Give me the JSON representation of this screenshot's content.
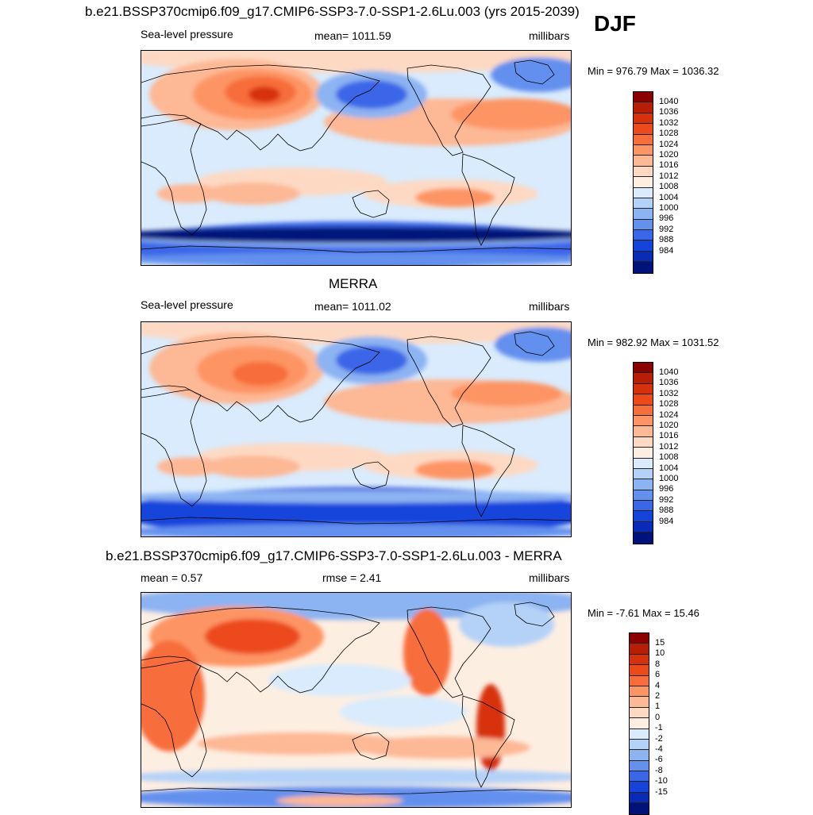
{
  "season": "DJF",
  "panels": [
    {
      "title": "b.e21.BSSP370cmip6.f09_g17.CMIP6-SSP3-7.0-SSP1-2.6Lu.003 (yrs 2015-2039)",
      "left_label": "Sea-level pressure",
      "center_label": "mean= 1011.59",
      "right_label": "millibars",
      "minmax": "Min = 976.79 Max = 1036.32"
    },
    {
      "title": "MERRA",
      "left_label": "Sea-level pressure",
      "center_label": "mean= 1011.02",
      "right_label": "millibars",
      "minmax": "Min = 982.92 Max = 1031.52"
    },
    {
      "title": "b.e21.BSSP370cmip6.f09_g17.CMIP6-SSP3-7.0-SSP1-2.6Lu.003 - MERRA",
      "left_label": "mean =   0.57",
      "center_label": "rmse =   2.41",
      "right_label": "millibars",
      "minmax": "Min =  -7.61 Max =  15.46"
    }
  ],
  "chart_data": [
    {
      "type": "heatmap",
      "title": "b.e21.BSSP370cmip6.f09_g17.CMIP6-SSP3-7.0-SSP1-2.6Lu.003 (yrs 2015-2039)",
      "variable": "Sea-level pressure",
      "units": "millibars",
      "mean": 1011.59,
      "min": 976.79,
      "max": 1036.32,
      "colorbar_levels": [
        "1040",
        "1036",
        "1032",
        "1028",
        "1024",
        "1020",
        "1016",
        "1012",
        "1008",
        "1004",
        "1000",
        "996",
        "992",
        "988",
        "984"
      ],
      "colorbar_colors": [
        "#8b0000",
        "#b81d05",
        "#d7300c",
        "#ec4a1b",
        "#f76d3b",
        "#fd9464",
        "#fdb895",
        "#fdd9c3",
        "#fdeee2",
        "#d9ebfc",
        "#b4d2f8",
        "#8cb3f2",
        "#6490ee",
        "#3a66e8",
        "#1544dc",
        "#0a2ab8",
        "#00137a"
      ]
    },
    {
      "type": "heatmap",
      "title": "MERRA",
      "variable": "Sea-level pressure",
      "units": "millibars",
      "mean": 1011.02,
      "min": 982.92,
      "max": 1031.52,
      "colorbar_levels": [
        "1040",
        "1036",
        "1032",
        "1028",
        "1024",
        "1020",
        "1016",
        "1012",
        "1008",
        "1004",
        "1000",
        "996",
        "992",
        "988",
        "984"
      ],
      "colorbar_colors": [
        "#8b0000",
        "#b81d05",
        "#d7300c",
        "#ec4a1b",
        "#f76d3b",
        "#fd9464",
        "#fdb895",
        "#fdd9c3",
        "#fdeee2",
        "#d9ebfc",
        "#b4d2f8",
        "#8cb3f2",
        "#6490ee",
        "#3a66e8",
        "#1544dc",
        "#0a2ab8",
        "#00137a"
      ]
    },
    {
      "type": "heatmap",
      "title": "b.e21.BSSP370cmip6.f09_g17.CMIP6-SSP3-7.0-SSP1-2.6Lu.003 - MERRA",
      "units": "millibars",
      "mean": 0.57,
      "rmse": 2.41,
      "min": -7.61,
      "max": 15.46,
      "colorbar_levels": [
        "15",
        "10",
        "8",
        "6",
        "4",
        "2",
        "1",
        "0",
        "-1",
        "-2",
        "-4",
        "-6",
        "-8",
        "-10",
        "-15"
      ],
      "colorbar_colors": [
        "#8b0000",
        "#b81d05",
        "#d7300c",
        "#ec4a1b",
        "#f76d3b",
        "#fd9464",
        "#fdb895",
        "#fdd9c3",
        "#fdeee2",
        "#d9ebfc",
        "#b4d2f8",
        "#8cb3f2",
        "#6490ee",
        "#3a66e8",
        "#1544dc",
        "#0a2ab8",
        "#00137a"
      ]
    }
  ]
}
